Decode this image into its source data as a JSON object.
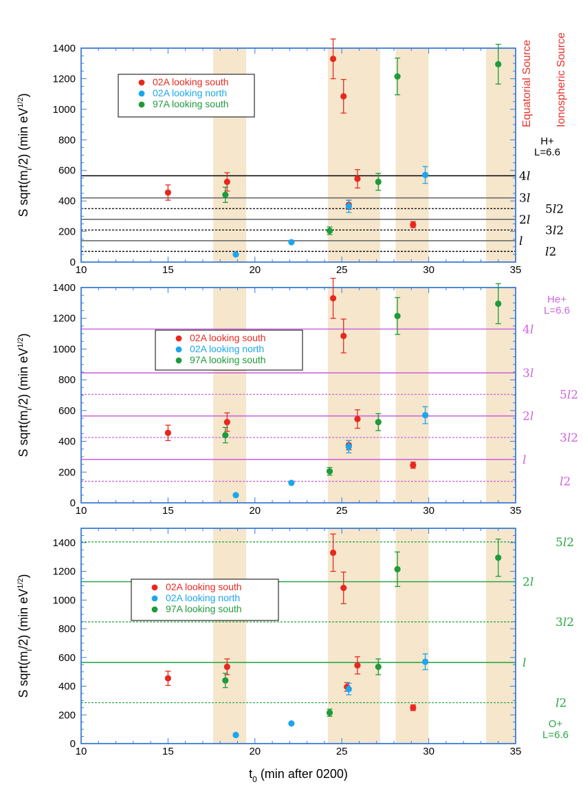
{
  "source_labels": {
    "equatorial": "Equatorial Source",
    "ionospheric": "Ionospheric Source",
    "equatorial_color": "#e8302a",
    "ionospheric_color": "#e8302a"
  },
  "colors": {
    "series_02A_south": "#e8281e",
    "series_02A_north": "#1ba6ee",
    "series_97A_south": "#1e9b3a",
    "shade": "#f5e6cc",
    "axis": "#3a7bd5",
    "hplus_lines": "#000000",
    "heplus_lines": "#cc66dd",
    "oplus_lines": "#2aa84a"
  },
  "chart_data": [
    {
      "type": "scatter",
      "panel": "top",
      "xlabel": "",
      "ylabel": "S sqrt(m_i/2) (min eV^1/2)",
      "xlim": [
        10,
        35
      ],
      "ylim": [
        0,
        1400
      ],
      "xticks": [
        "10",
        "15",
        "20",
        "25",
        "30",
        "35"
      ],
      "yticks": [
        "0",
        "200",
        "400",
        "600",
        "800",
        "1000",
        "1200",
        "1400"
      ],
      "shaded_intervals": [
        [
          17.6,
          19.5
        ],
        [
          24.2,
          27.2
        ],
        [
          28.1,
          30.0
        ],
        [
          33.3,
          35
        ]
      ],
      "legend": {
        "position": "upper-left",
        "entries": [
          "02A looking south",
          "02A looking north",
          "97A looking south"
        ]
      },
      "series": [
        {
          "name": "02A looking south",
          "points": [
            {
              "x": 15.0,
              "y": 455,
              "err": 50
            },
            {
              "x": 18.4,
              "y": 525,
              "err": 60
            },
            {
              "x": 24.5,
              "y": 1330,
              "err": 130
            },
            {
              "x": 25.1,
              "y": 1085,
              "err": 110
            },
            {
              "x": 25.4,
              "y": 375,
              "err": 30
            },
            {
              "x": 25.9,
              "y": 545,
              "err": 60
            },
            {
              "x": 29.1,
              "y": 245,
              "err": 20
            }
          ]
        },
        {
          "name": "02A looking north",
          "points": [
            {
              "x": 18.9,
              "y": 50
            },
            {
              "x": 22.1,
              "y": 130
            },
            {
              "x": 25.4,
              "y": 365,
              "err": 40
            },
            {
              "x": 29.8,
              "y": 570,
              "err": 55
            }
          ]
        },
        {
          "name": "97A looking south",
          "points": [
            {
              "x": 18.3,
              "y": 440,
              "err": 50
            },
            {
              "x": 24.3,
              "y": 205,
              "err": 25
            },
            {
              "x": 27.1,
              "y": 525,
              "err": 55
            },
            {
              "x": 28.2,
              "y": 1215,
              "err": 120
            },
            {
              "x": 34.0,
              "y": 1295,
              "err": 130
            }
          ]
        }
      ],
      "reference_lines": [
        {
          "y": 565,
          "style": "solid",
          "color": "#000000",
          "label": "4l",
          "side": "near"
        },
        {
          "y": 420,
          "style": "solid",
          "color": "#6a6a6a",
          "label": "3l",
          "side": "near"
        },
        {
          "y": 350,
          "style": "dashed",
          "color": "#000000",
          "label": "5l2",
          "side": "far"
        },
        {
          "y": 280,
          "style": "solid",
          "color": "#6a6a6a",
          "label": "2l",
          "side": "near"
        },
        {
          "y": 210,
          "style": "dashed",
          "color": "#000000",
          "label": "3l2",
          "side": "far"
        },
        {
          "y": 140,
          "style": "solid",
          "color": "#6a6a6a",
          "label": "l",
          "side": "near"
        },
        {
          "y": 70,
          "style": "dashed",
          "color": "#000000",
          "label": "l2",
          "side": "far"
        }
      ],
      "ion_label": {
        "lines": [
          "H+",
          "L=6.6"
        ],
        "color": "#000000"
      }
    },
    {
      "type": "scatter",
      "panel": "middle",
      "xlabel": "",
      "ylabel": "S sqrt(m_i/2) (min eV^1/2)",
      "xlim": [
        10,
        35
      ],
      "ylim": [
        0,
        1400
      ],
      "xticks": [
        "10",
        "15",
        "20",
        "25",
        "30",
        "35"
      ],
      "yticks": [
        "0",
        "200",
        "400",
        "600",
        "800",
        "1000",
        "1200",
        "1400"
      ],
      "shaded_intervals": [
        [
          17.6,
          19.5
        ],
        [
          24.2,
          27.2
        ],
        [
          28.1,
          30.0
        ],
        [
          33.3,
          35
        ]
      ],
      "legend": {
        "position": "center-left",
        "entries": [
          "02A looking south",
          "02A looking north",
          "97A looking south"
        ]
      },
      "series": [
        {
          "name": "02A looking south",
          "points": [
            {
              "x": 15.0,
              "y": 455,
              "err": 50
            },
            {
              "x": 18.4,
              "y": 525,
              "err": 60
            },
            {
              "x": 24.5,
              "y": 1330,
              "err": 130
            },
            {
              "x": 25.1,
              "y": 1085,
              "err": 110
            },
            {
              "x": 25.4,
              "y": 375,
              "err": 30
            },
            {
              "x": 25.9,
              "y": 545,
              "err": 60
            },
            {
              "x": 29.1,
              "y": 245,
              "err": 20
            }
          ]
        },
        {
          "name": "02A looking north",
          "points": [
            {
              "x": 18.9,
              "y": 50
            },
            {
              "x": 22.1,
              "y": 130
            },
            {
              "x": 25.4,
              "y": 365,
              "err": 40
            },
            {
              "x": 29.8,
              "y": 570,
              "err": 55
            }
          ]
        },
        {
          "name": "97A looking south",
          "points": [
            {
              "x": 18.3,
              "y": 440,
              "err": 50
            },
            {
              "x": 24.3,
              "y": 205,
              "err": 25
            },
            {
              "x": 27.1,
              "y": 525,
              "err": 55
            },
            {
              "x": 28.2,
              "y": 1215,
              "err": 120
            },
            {
              "x": 34.0,
              "y": 1295,
              "err": 130
            }
          ]
        }
      ],
      "reference_lines": [
        {
          "y": 1130,
          "style": "solid",
          "color": "#cc66dd",
          "label": "4l",
          "side": "near"
        },
        {
          "y": 845,
          "style": "solid",
          "color": "#cc66dd",
          "label": "3l",
          "side": "near"
        },
        {
          "y": 705,
          "style": "dashed",
          "color": "#cc66dd",
          "label": "5l2",
          "side": "far"
        },
        {
          "y": 565,
          "style": "solid",
          "color": "#cc66dd",
          "label": "2l",
          "side": "near"
        },
        {
          "y": 425,
          "style": "dashed",
          "color": "#cc66dd",
          "label": "3l2",
          "side": "far"
        },
        {
          "y": 282,
          "style": "solid",
          "color": "#cc66dd",
          "label": "l",
          "side": "near"
        },
        {
          "y": 140,
          "style": "dashed",
          "color": "#cc66dd",
          "label": "l2",
          "side": "far"
        }
      ],
      "ion_label": {
        "lines": [
          "He+",
          "L=6.6"
        ],
        "color": "#cc66dd"
      }
    },
    {
      "type": "scatter",
      "panel": "bottom",
      "xlabel": "t_0 (min after 0200)",
      "ylabel": "S sqrt(m_i/2) (min eV^1/2)",
      "xlim": [
        10,
        35
      ],
      "ylim": [
        0,
        1500
      ],
      "xticks": [
        "10",
        "15",
        "20",
        "25",
        "30",
        "35"
      ],
      "yticks": [
        "0",
        "200",
        "400",
        "600",
        "800",
        "1000",
        "1200",
        "1400"
      ],
      "shaded_intervals": [
        [
          17.6,
          19.5
        ],
        [
          24.2,
          27.2
        ],
        [
          28.1,
          30.0
        ],
        [
          33.3,
          35
        ]
      ],
      "legend": {
        "position": "center-left",
        "entries": [
          "02A looking south",
          "02A looking north",
          "97A looking south"
        ]
      },
      "series": [
        {
          "name": "02A looking south",
          "points": [
            {
              "x": 15.0,
              "y": 455,
              "err": 50
            },
            {
              "x": 18.4,
              "y": 535,
              "err": 55
            },
            {
              "x": 24.5,
              "y": 1330,
              "err": 130
            },
            {
              "x": 25.1,
              "y": 1085,
              "err": 110
            },
            {
              "x": 25.3,
              "y": 395,
              "err": 30
            },
            {
              "x": 25.9,
              "y": 545,
              "err": 60
            },
            {
              "x": 29.1,
              "y": 250,
              "err": 20
            }
          ]
        },
        {
          "name": "02A looking north",
          "points": [
            {
              "x": 18.9,
              "y": 60
            },
            {
              "x": 22.1,
              "y": 140
            },
            {
              "x": 25.4,
              "y": 380,
              "err": 40
            },
            {
              "x": 29.8,
              "y": 570,
              "err": 55
            }
          ]
        },
        {
          "name": "97A looking south",
          "points": [
            {
              "x": 18.3,
              "y": 440,
              "err": 50
            },
            {
              "x": 24.3,
              "y": 215,
              "err": 25
            },
            {
              "x": 27.1,
              "y": 535,
              "err": 55
            },
            {
              "x": 28.2,
              "y": 1215,
              "err": 120
            },
            {
              "x": 34.0,
              "y": 1295,
              "err": 130
            }
          ]
        }
      ],
      "reference_lines": [
        {
          "y": 1405,
          "style": "dashed",
          "color": "#2aa84a",
          "label": "5l2",
          "side": "far"
        },
        {
          "y": 1128,
          "style": "solid",
          "color": "#2aa84a",
          "label": "2l",
          "side": "near"
        },
        {
          "y": 848,
          "style": "dashed",
          "color": "#2aa84a",
          "label": "3l2",
          "side": "far"
        },
        {
          "y": 565,
          "style": "solid",
          "color": "#2aa84a",
          "label": "l",
          "side": "near"
        },
        {
          "y": 285,
          "style": "dashed",
          "color": "#2aa84a",
          "label": "l2",
          "side": "far"
        }
      ],
      "ion_label": {
        "lines": [
          "O+",
          "L=6.6"
        ],
        "color": "#2aa84a"
      }
    }
  ]
}
